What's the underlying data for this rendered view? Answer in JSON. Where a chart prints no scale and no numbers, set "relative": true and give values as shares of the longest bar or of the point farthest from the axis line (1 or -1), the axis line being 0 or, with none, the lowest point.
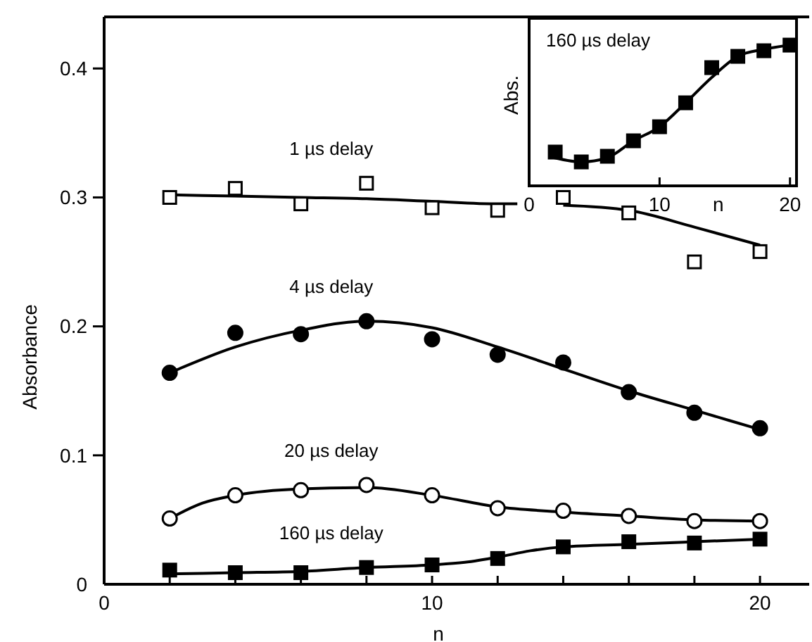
{
  "chart_data": [
    {
      "type": "scatter",
      "xlabel": "n",
      "ylabel": "Absorbance",
      "xlim": [
        0,
        21.5
      ],
      "ylim": [
        0,
        0.44
      ],
      "xticks": [
        0,
        {
          "value": 2,
          "label": null
        },
        {
          "value": 4,
          "label": null
        },
        {
          "value": 6,
          "label": null
        },
        {
          "value": 8,
          "label": null
        },
        10,
        {
          "value": 12,
          "label": null
        },
        {
          "value": 14,
          "label": null
        },
        {
          "value": 16,
          "label": null
        },
        {
          "value": 18,
          "label": null
        },
        20
      ],
      "yticks": [
        0,
        0.1,
        0.2,
        0.3,
        0.4
      ],
      "grid": false,
      "series": [
        {
          "name": "1 µs delay",
          "marker": "square",
          "color": "#ffffff",
          "x": [
            2,
            4,
            6,
            8,
            10,
            12,
            14,
            16,
            18,
            20
          ],
          "values": [
            0.3,
            0.307,
            0.295,
            0.311,
            0.292,
            0.29,
            0.3,
            0.288,
            0.25,
            0.258
          ]
        },
        {
          "type": "line",
          "color": "#000000",
          "x": [
            2,
            4,
            6,
            8,
            10,
            12,
            12.6,
            13.9,
            14,
            16,
            18,
            20
          ],
          "values": [
            0.302,
            0.301,
            0.3,
            0.299,
            0.297,
            0.295,
            0.295,
            null,
            0.294,
            0.29,
            0.277,
            0.263
          ]
        },
        {
          "name": "4 µs delay",
          "marker": "circle",
          "color": "#000000",
          "x": [
            2,
            4,
            6,
            8,
            10,
            12,
            14,
            16,
            18,
            20
          ],
          "values": [
            0.164,
            0.195,
            0.194,
            0.204,
            0.19,
            0.178,
            0.172,
            0.149,
            0.133,
            0.121
          ]
        },
        {
          "type": "line",
          "color": "#000000",
          "x": [
            2,
            4,
            6,
            8,
            10,
            12,
            14,
            16,
            18,
            20
          ],
          "values": [
            0.164,
            0.184,
            0.197,
            0.204,
            0.199,
            0.184,
            0.167,
            0.15,
            0.135,
            0.12
          ]
        },
        {
          "name": "20 µs delay",
          "marker": "circle",
          "color": "#ffffff",
          "x": [
            2,
            4,
            6,
            8,
            10,
            12,
            14,
            16,
            18,
            20
          ],
          "values": [
            0.051,
            0.069,
            0.073,
            0.077,
            0.069,
            0.059,
            0.057,
            0.053,
            0.049,
            0.049
          ]
        },
        {
          "type": "line",
          "color": "#000000",
          "x": [
            2,
            3,
            4,
            6,
            8,
            10,
            12,
            14,
            16,
            18,
            20
          ],
          "values": [
            0.051,
            0.063,
            0.069,
            0.074,
            0.075,
            0.069,
            0.06,
            0.056,
            0.053,
            0.05,
            0.049
          ]
        },
        {
          "name": "160 µs delay",
          "marker": "square",
          "color": "#000000",
          "x": [
            2,
            4,
            6,
            8,
            10,
            12,
            14,
            16,
            18,
            20
          ],
          "values": [
            0.011,
            0.009,
            0.009,
            0.013,
            0.015,
            0.02,
            0.029,
            0.033,
            0.032,
            0.035
          ]
        },
        {
          "type": "line",
          "color": "#000000",
          "x": [
            2,
            4,
            6,
            8,
            10,
            11,
            12,
            13,
            14,
            16,
            18,
            20
          ],
          "values": [
            0.008,
            0.009,
            0.01,
            0.013,
            0.015,
            0.017,
            0.021,
            0.026,
            0.029,
            0.031,
            0.033,
            0.035
          ]
        }
      ]
    },
    {
      "type": "scatter",
      "xlabel": "n",
      "ylabel": "Abs.",
      "relative": true,
      "xlim": [
        0,
        20.5
      ],
      "xticks": [
        0,
        10,
        20
      ],
      "tick_labels": "x",
      "grid": false,
      "series": [
        {
          "name": "160 µs delay",
          "marker": "square",
          "color": "#000000",
          "x": [
            2,
            4,
            6,
            8,
            10,
            12,
            14,
            16,
            18,
            20
          ],
          "values": [
            0.24,
            0.17,
            0.21,
            0.32,
            0.42,
            0.59,
            0.84,
            0.92,
            0.96,
            1
          ]
        },
        {
          "type": "line",
          "color": "#000000",
          "x": [
            1.5,
            4,
            6,
            8,
            10,
            12,
            14,
            16,
            18,
            20
          ],
          "values": [
            0.21,
            0.17,
            0.2,
            0.32,
            0.42,
            0.59,
            0.77,
            0.92,
            0.97,
            1
          ]
        }
      ]
    }
  ]
}
